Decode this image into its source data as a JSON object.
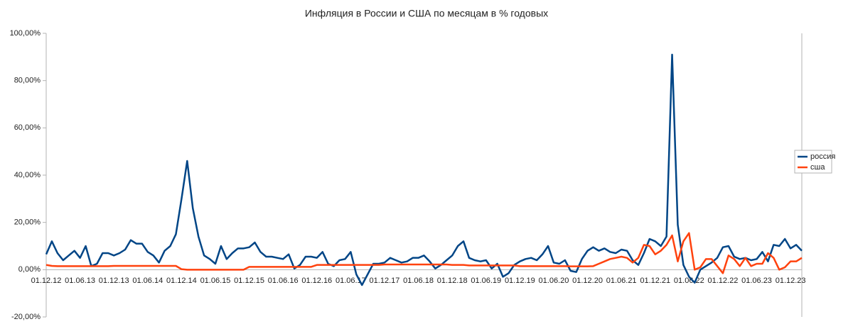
{
  "chart_data": {
    "type": "line",
    "title": "Инфляция в России и США по месяцам в % годовых",
    "categories": [
      "01.12.12",
      null,
      null,
      null,
      null,
      null,
      "01.06.13",
      null,
      null,
      null,
      null,
      null,
      "01.12.13",
      null,
      null,
      null,
      null,
      null,
      "01.06.14",
      null,
      null,
      null,
      null,
      null,
      "01.12.14",
      null,
      null,
      null,
      null,
      null,
      "01.06.15",
      null,
      null,
      null,
      null,
      null,
      "01.12.15",
      null,
      null,
      null,
      null,
      null,
      "01.06.16",
      null,
      null,
      null,
      null,
      null,
      "01.12.16",
      null,
      null,
      null,
      null,
      null,
      "01.06.17",
      null,
      null,
      null,
      null,
      null,
      "01.12.17",
      null,
      null,
      null,
      null,
      null,
      "01.06.18",
      null,
      null,
      null,
      null,
      null,
      "01.12.18",
      null,
      null,
      null,
      null,
      null,
      "01.06.19",
      null,
      null,
      null,
      null,
      null,
      "01.12.19",
      null,
      null,
      null,
      null,
      null,
      "01.06.20",
      null,
      null,
      null,
      null,
      null,
      "01.12.20",
      null,
      null,
      null,
      null,
      null,
      "01.06.21",
      null,
      null,
      null,
      null,
      null,
      "01.12.21",
      null,
      null,
      null,
      null,
      null,
      "01.06.22",
      null,
      null,
      null,
      null,
      null,
      "01.12.22",
      null,
      null,
      null,
      null,
      null,
      "01.06.23",
      null,
      null,
      null,
      null,
      null,
      "01.12.23",
      null,
      null
    ],
    "series": [
      {
        "name": "россия",
        "color": "#004586",
        "values": [
          6.5,
          12,
          7,
          4,
          6,
          8,
          5,
          10,
          1.5,
          2.5,
          7,
          7,
          6,
          7,
          8.5,
          12.5,
          11,
          11,
          7.5,
          6,
          3,
          8,
          10,
          15,
          30,
          46,
          26,
          14,
          6,
          4.5,
          2.5,
          10,
          4.5,
          7,
          9,
          9,
          9.5,
          11.5,
          7.5,
          5.5,
          5.5,
          5,
          4.5,
          6.5,
          0.5,
          2,
          5.5,
          5.5,
          5,
          7.5,
          2.5,
          1.5,
          4,
          4.5,
          7.5,
          -2,
          -6.5,
          -2,
          2.5,
          2.5,
          3,
          5,
          4,
          3,
          3.5,
          5,
          5,
          6,
          3.5,
          0.5,
          2,
          4,
          6,
          10,
          12,
          5,
          4,
          3.5,
          4,
          0.5,
          2.5,
          -3,
          -1.5,
          2,
          3.5,
          4.5,
          5,
          4,
          6.5,
          10,
          3,
          2.5,
          4,
          -0.5,
          -1,
          4.5,
          8,
          9.5,
          8,
          9,
          7.5,
          7,
          8.5,
          8,
          4,
          2,
          7,
          13,
          12,
          10,
          14,
          91,
          19,
          2,
          -3,
          -5.5,
          0,
          1.5,
          3,
          5,
          9.5,
          10,
          5.5,
          4.5,
          5,
          4,
          4.5,
          7.5,
          3.5,
          10.5,
          10,
          13,
          9,
          10.5,
          8
        ]
      },
      {
        "name": "сша",
        "color": "#ff420e",
        "values": [
          2,
          1.6,
          1.5,
          1.5,
          1.5,
          1.5,
          1.5,
          1.5,
          1.5,
          1.5,
          1.5,
          1.5,
          1.6,
          1.6,
          1.6,
          1.6,
          1.6,
          1.6,
          1.6,
          1.6,
          1.6,
          1.6,
          1.6,
          1.6,
          0.2,
          0,
          0,
          0,
          0,
          0,
          0,
          0,
          0,
          0,
          0,
          0,
          1.2,
          1.2,
          1.2,
          1.2,
          1.2,
          1.2,
          1.2,
          1.2,
          1.2,
          1.2,
          1.2,
          1.2,
          2,
          2,
          2,
          2,
          2,
          2,
          2,
          2,
          2,
          2,
          2,
          2,
          2.2,
          2.2,
          2.2,
          2.2,
          2.2,
          2.2,
          2.2,
          2.2,
          2.2,
          2.2,
          2.2,
          2.2,
          2,
          2,
          2,
          1.8,
          1.8,
          1.8,
          1.8,
          1.8,
          1.8,
          1.8,
          1.8,
          1.8,
          1.5,
          1.5,
          1.5,
          1.5,
          1.5,
          1.5,
          1.5,
          1.5,
          1.5,
          1.4,
          1.4,
          1.4,
          1.4,
          1.5,
          2.5,
          3.5,
          4.5,
          5,
          5.5,
          5,
          3,
          5,
          10.5,
          10,
          6.5,
          8,
          10.5,
          14.5,
          3.5,
          12,
          15.5,
          0,
          1,
          4.5,
          4.5,
          1.5,
          -1.5,
          6,
          4.5,
          1.5,
          5,
          1.5,
          2.5,
          2.5,
          7,
          5,
          0,
          1,
          3.5,
          3.5,
          5
        ]
      }
    ],
    "ylim": [
      -20,
      100
    ],
    "yticks": [
      {
        "value": -20,
        "label": "-20,00%"
      },
      {
        "value": 0,
        "label": "0,00%"
      },
      {
        "value": 20,
        "label": "20,00%"
      },
      {
        "value": 40,
        "label": "40,00%"
      },
      {
        "value": 60,
        "label": "60,00%"
      },
      {
        "value": 80,
        "label": "80,00%"
      },
      {
        "value": 100,
        "label": "100,00%"
      }
    ],
    "legend": "right"
  }
}
